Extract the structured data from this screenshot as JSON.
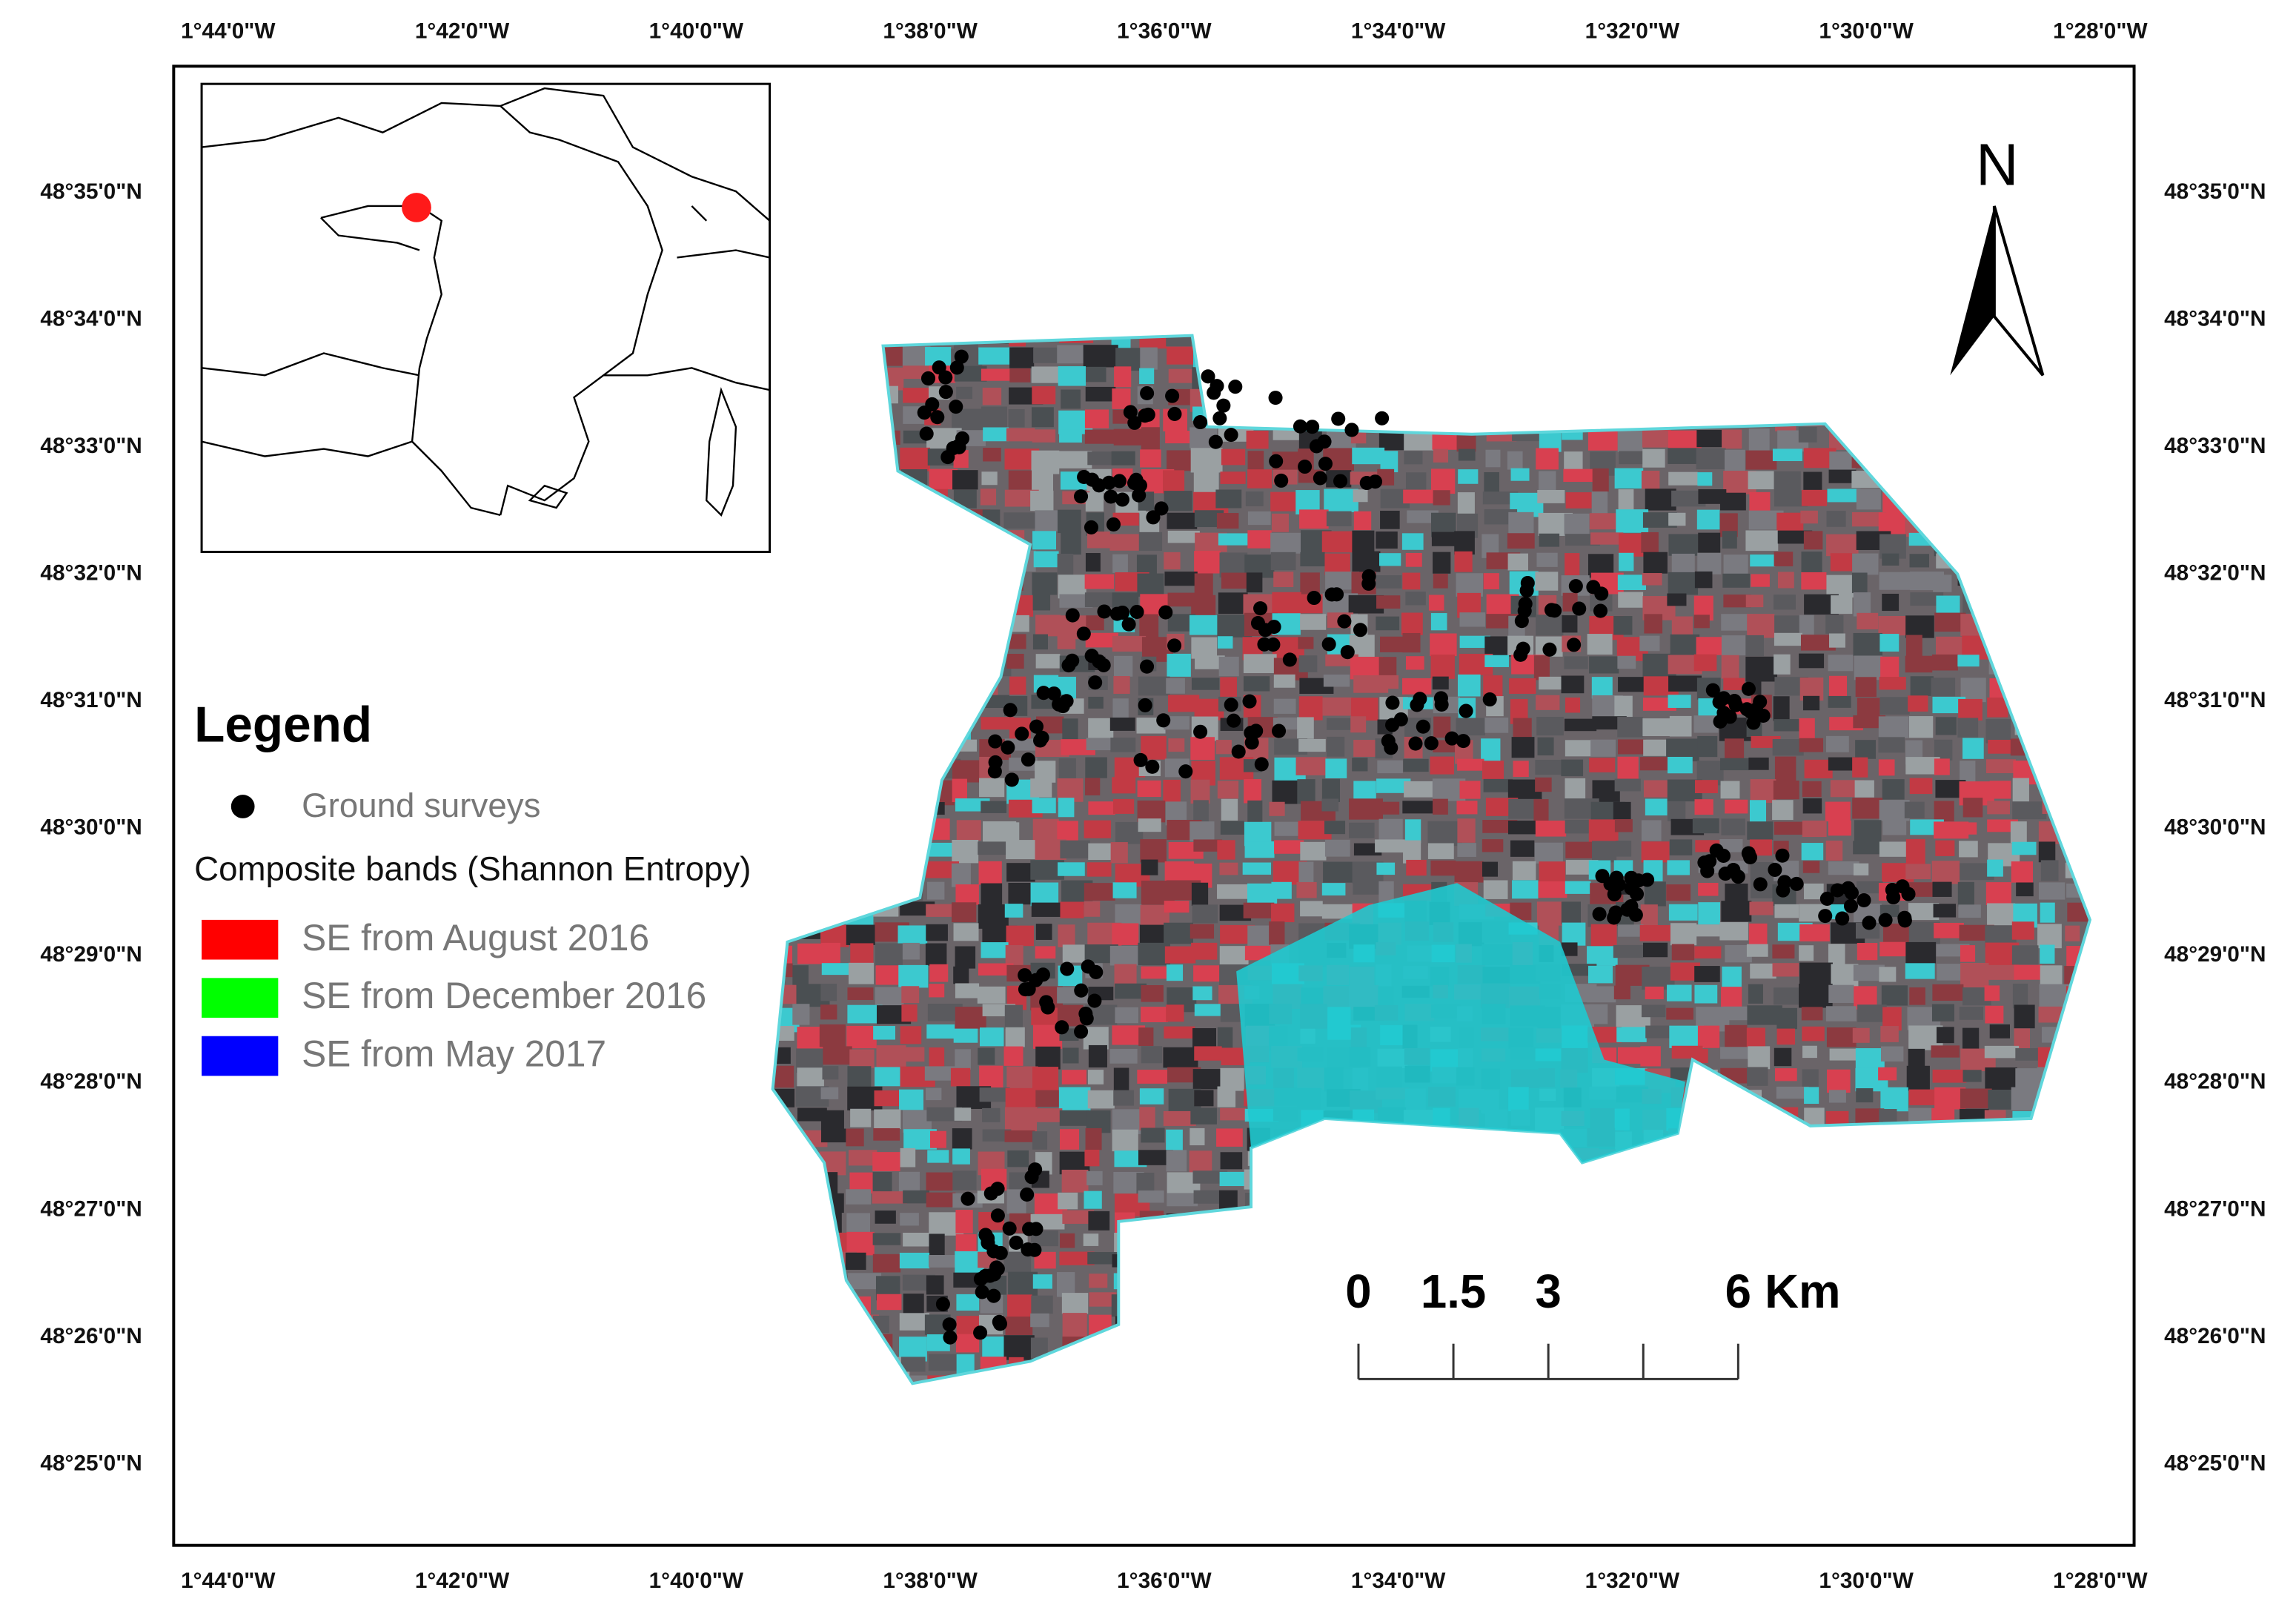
{
  "map": {
    "longitude_labels": [
      "1°44'0\"W",
      "1°42'0\"W",
      "1°40'0\"W",
      "1°38'0\"W",
      "1°36'0\"W",
      "1°34'0\"W",
      "1°32'0\"W",
      "1°30'0\"W",
      "1°28'0\"W"
    ],
    "latitude_labels": [
      "48°35'0\"N",
      "48°34'0\"N",
      "48°33'0\"N",
      "48°32'0\"N",
      "48°31'0\"N",
      "48°30'0\"N",
      "48°29'0\"N",
      "48°28'0\"N",
      "48°27'0\"N",
      "48°26'0\"N",
      "48°25'0\"N"
    ],
    "legend": {
      "title": "Legend",
      "ground_surveys": "Ground surveys",
      "composite_title": "Composite bands (Shannon Entropy)",
      "bands": [
        {
          "label": "SE from August 2016",
          "color": "#ff0000"
        },
        {
          "label": "SE from December 2016",
          "color": "#00ff00"
        },
        {
          "label": "SE from May 2017",
          "color": "#0000ff"
        }
      ]
    },
    "scale_bar": {
      "ticks": [
        0,
        1.5,
        3,
        6
      ],
      "unit": "Km"
    },
    "north": "N"
  }
}
